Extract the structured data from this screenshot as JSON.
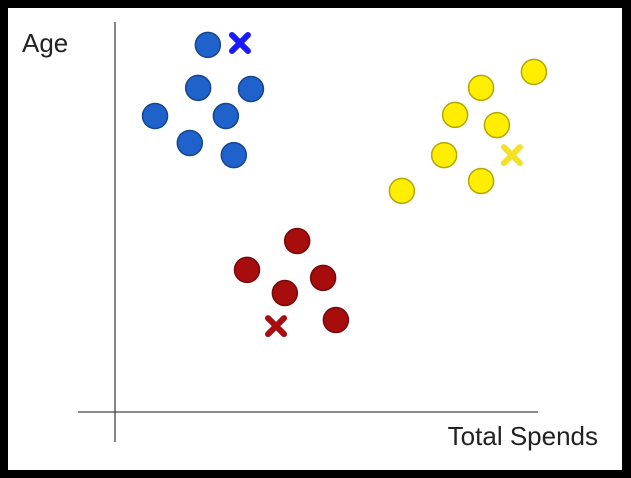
{
  "chart_data": {
    "type": "scatter",
    "xlabel": "Total Spends",
    "ylabel": "Age",
    "xlim": [
      0,
      100
    ],
    "ylim": [
      0,
      100
    ],
    "series": [
      {
        "color": "#1f62cc",
        "marker": "circle",
        "x": [
          21.1,
          18.9,
          30.9,
          9.1,
          25.2,
          17.0,
          27.0
        ],
        "values": [
          96.6,
          85.3,
          85.0,
          77.9,
          77.9,
          70.8,
          67.6
        ]
      },
      {
        "color": "#ffee00",
        "marker": "circle",
        "x": [
          95.2,
          83.2,
          77.3,
          86.8,
          74.8,
          83.2,
          65.2
        ],
        "values": [
          89.5,
          85.3,
          78.2,
          75.5,
          67.6,
          60.8,
          58.2
        ]
      },
      {
        "color": "#a80d0d",
        "marker": "circle",
        "x": [
          41.4,
          30.0,
          47.3,
          38.6,
          50.2
        ],
        "values": [
          45.0,
          37.4,
          35.3,
          31.3,
          24.2
        ]
      },
      {
        "color": "#1a1aff",
        "marker": "cross",
        "x": [
          28.4
        ],
        "values": [
          97.1
        ]
      },
      {
        "color": "#f2e227",
        "marker": "cross",
        "x": [
          90.2
        ],
        "values": [
          67.6
        ]
      },
      {
        "color": "#a80d0d",
        "marker": "cross",
        "x": [
          36.6
        ],
        "values": [
          22.6
        ]
      }
    ]
  }
}
